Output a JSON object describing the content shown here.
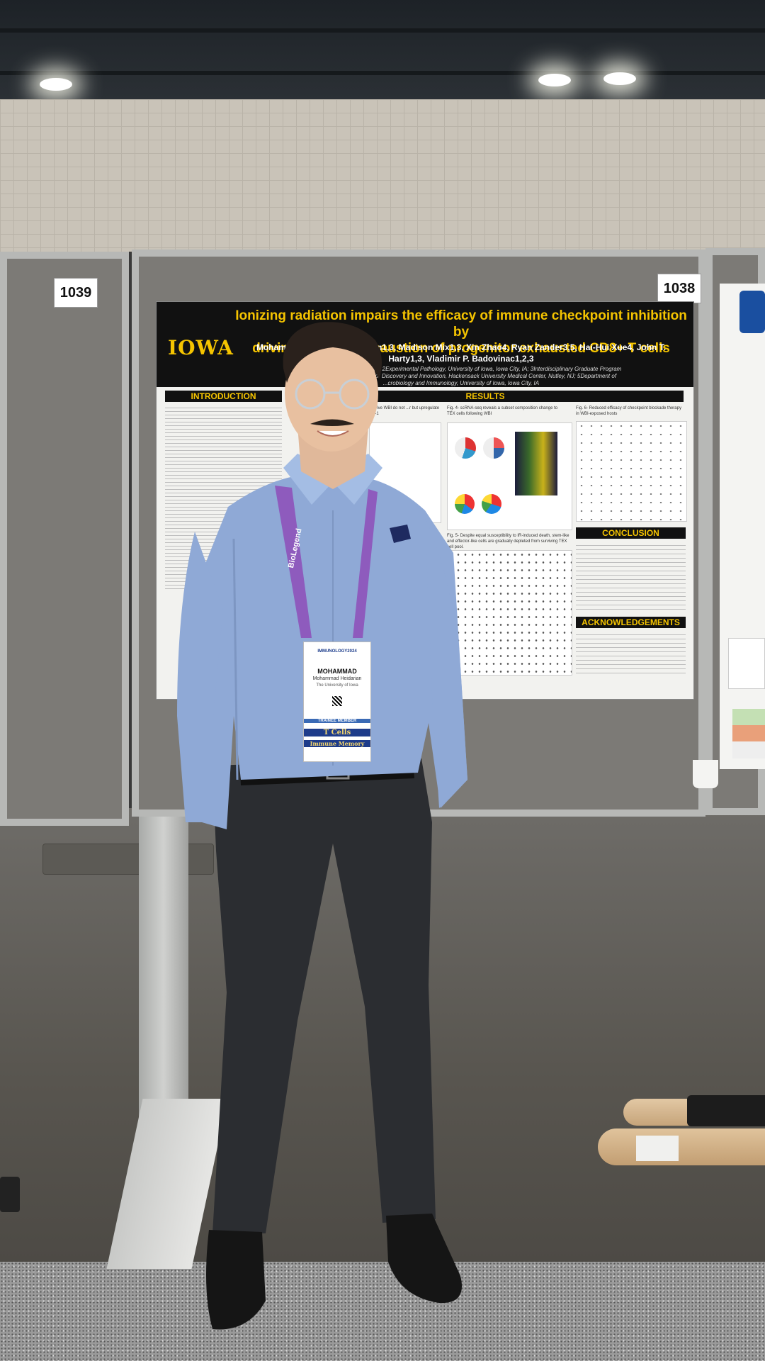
{
  "booths": {
    "left_number": "1039",
    "right_number": "1038"
  },
  "poster": {
    "logo": "IOWA",
    "title_line1": "Ionizing radiation impairs the efficacy of immune checkpoint inhibition by",
    "title_line2": "driving terminal exhaustion of progenitor exhausted CD8+ T cells",
    "authors_line1": "Mohammad H... Kumar Kannan1,3, Madison Mix1,3, Xin Zhao4, Ryan Zander3,5, Hai-Hui Xue4, John T.",
    "authors_line2": "Harty1,3, Vladimir P. Badovinac1,2,3",
    "affiliations_line1": "1Department of ... Iowa City, IA; 2Experimental Pathology, University of Iowa, Iowa City, IA; 3Interdisciplinary Graduate Program",
    "affiliations_line2": "in Immunology, ... 4Center for Discovery and Innovation, Hackensack University Medical Center, Nutley, NJ; 5Department of",
    "affiliations_line3": "...crobiology and Immunology, University of Iowa, Iowa City, IA",
    "sections": {
      "introduction": "INTRODUCTION",
      "results": "RESULTS",
      "conclusion": "CONCLUSION",
      "acknowledgements": "ACKNOWLEDGEMENTS"
    },
    "figure_captions": {
      "fig4": "Fig. 4- scRNA-seq reveals a subset composition change to TEX cells following WBI",
      "fig5": "Fig. 5- Despite equal susceptibility to IR-induced death, stem-like and effector-like cells are gradually depleted from surviving TEX cell pool.",
      "fig6": "Fig. 6- Reduced efficacy of checkpoint blockade therapy in WBI-exposed hosts",
      "fig3_partial": "survive WBI do not ...r but upregulate PD-1"
    }
  },
  "badge": {
    "event": "IMMUNOLOGY2024",
    "first_name": "MOHAMMAD",
    "full_name": "Mohammad Heidarian",
    "institution": "The University of Iowa",
    "member_type": "TRAINEE MEMBER",
    "ribbon_top": "T Cells",
    "ribbon_bottom": "Immune Memory",
    "lanyard_text": "BioLegend"
  },
  "colors": {
    "poster_header": "#111111",
    "poster_title": "#f5c400",
    "shirt": "#8fa9d6",
    "lanyard": "#8e5bbd",
    "pants": "#2b2d31"
  }
}
